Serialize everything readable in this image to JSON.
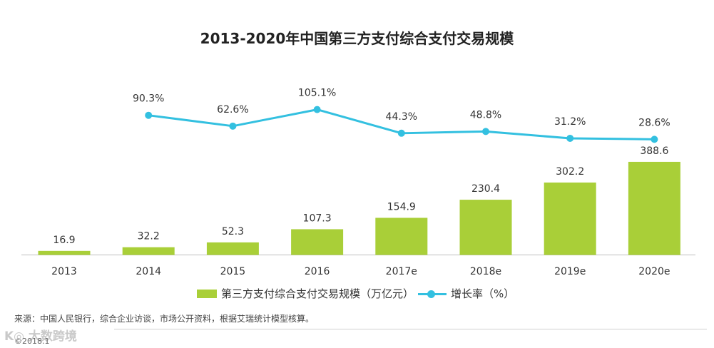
{
  "chart_data": {
    "type": "bar",
    "title": "2013-2020年中国第三方支付综合支付交易规模",
    "categories": [
      "2013",
      "2014",
      "2015",
      "2016",
      "2017e",
      "2018e",
      "2019e",
      "2020e"
    ],
    "series": [
      {
        "name": "第三方支付综合支付交易规模（万亿元）",
        "type": "bar",
        "values": [
          16.9,
          32.2,
          52.3,
          107.3,
          154.9,
          230.4,
          302.2,
          388.6
        ],
        "labels": [
          "16.9",
          "32.2",
          "52.3",
          "107.3",
          "154.9",
          "230.4",
          "302.2",
          "388.6"
        ],
        "color": "#a9cf38"
      },
      {
        "name": "增长率（%）",
        "type": "line",
        "values": [
          null,
          90.3,
          62.6,
          105.1,
          44.3,
          48.8,
          31.2,
          28.6
        ],
        "labels": [
          "",
          "90.3%",
          "62.6%",
          "105.1%",
          "44.3%",
          "48.8%",
          "31.2%",
          "28.6%"
        ],
        "color": "#33c0e0"
      }
    ],
    "xlabel": "",
    "ylabel": "",
    "ylim": [
      0,
      400
    ]
  },
  "legend": {
    "bar_label": "第三方支付综合支付交易规模（万亿元）",
    "line_label": "增长率（%）"
  },
  "footer": {
    "source": "来源：中国人民银行，综合企业访谈，市场公开资料，根据艾瑞统计模型核算。",
    "watermark": "K◎ 大数跨境",
    "copyright": "©2018.1"
  }
}
